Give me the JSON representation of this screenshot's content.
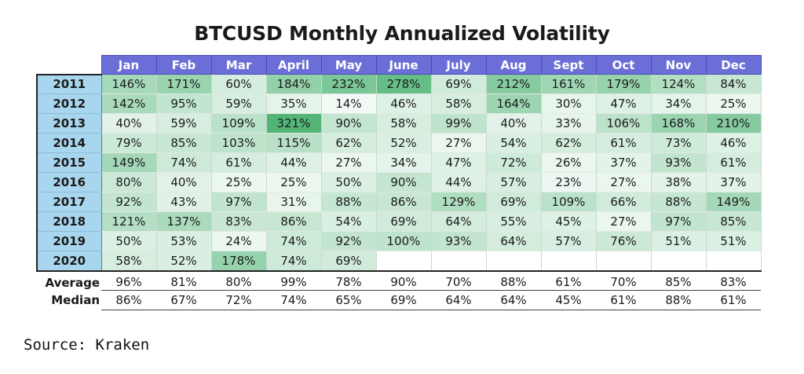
{
  "chart_data": {
    "type": "table",
    "title": "BTCUSD Monthly Annualized Volatility",
    "columns": [
      "Jan",
      "Feb",
      "Mar",
      "April",
      "May",
      "June",
      "July",
      "Aug",
      "Sept",
      "Oct",
      "Nov",
      "Dec"
    ],
    "rows": [
      {
        "year": "2011",
        "values": [
          "146%",
          "171%",
          "60%",
          "184%",
          "232%",
          "278%",
          "69%",
          "212%",
          "161%",
          "179%",
          "124%",
          "84%"
        ]
      },
      {
        "year": "2012",
        "values": [
          "142%",
          "95%",
          "59%",
          "35%",
          "14%",
          "46%",
          "58%",
          "164%",
          "30%",
          "47%",
          "34%",
          "25%"
        ]
      },
      {
        "year": "2013",
        "values": [
          "40%",
          "59%",
          "109%",
          "321%",
          "90%",
          "58%",
          "99%",
          "40%",
          "33%",
          "106%",
          "168%",
          "210%"
        ]
      },
      {
        "year": "2014",
        "values": [
          "79%",
          "85%",
          "103%",
          "115%",
          "62%",
          "52%",
          "27%",
          "54%",
          "62%",
          "61%",
          "73%",
          "46%"
        ]
      },
      {
        "year": "2015",
        "values": [
          "149%",
          "74%",
          "61%",
          "44%",
          "27%",
          "34%",
          "47%",
          "72%",
          "26%",
          "37%",
          "93%",
          "61%"
        ]
      },
      {
        "year": "2016",
        "values": [
          "80%",
          "40%",
          "25%",
          "25%",
          "50%",
          "90%",
          "44%",
          "57%",
          "23%",
          "27%",
          "38%",
          "37%"
        ]
      },
      {
        "year": "2017",
        "values": [
          "92%",
          "43%",
          "97%",
          "31%",
          "88%",
          "86%",
          "129%",
          "69%",
          "109%",
          "66%",
          "88%",
          "149%"
        ]
      },
      {
        "year": "2018",
        "values": [
          "121%",
          "137%",
          "83%",
          "86%",
          "54%",
          "69%",
          "64%",
          "55%",
          "45%",
          "27%",
          "97%",
          "85%"
        ]
      },
      {
        "year": "2019",
        "values": [
          "50%",
          "53%",
          "24%",
          "74%",
          "92%",
          "100%",
          "93%",
          "64%",
          "57%",
          "76%",
          "51%",
          "51%"
        ]
      },
      {
        "year": "2020",
        "values": [
          "58%",
          "52%",
          "178%",
          "74%",
          "69%",
          "",
          "",
          "",
          "",
          "",
          "",
          ""
        ]
      }
    ],
    "summary": [
      {
        "label": "Average",
        "values": [
          "96%",
          "81%",
          "80%",
          "99%",
          "78%",
          "90%",
          "70%",
          "88%",
          "61%",
          "70%",
          "85%",
          "83%"
        ]
      },
      {
        "label": "Median",
        "values": [
          "86%",
          "67%",
          "72%",
          "74%",
          "65%",
          "69%",
          "64%",
          "64%",
          "45%",
          "61%",
          "88%",
          "61%"
        ]
      }
    ],
    "colors": {
      "header_bg": "#6b6ed6",
      "year_bg": "#a9d6ef",
      "heat_low": "#ffffff",
      "heat_high": "#52b577"
    },
    "heat_scale": [
      0,
      321
    ]
  },
  "source": "Source: Kraken"
}
